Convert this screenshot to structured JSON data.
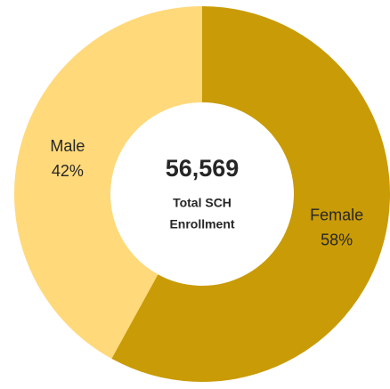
{
  "chart_data": {
    "type": "donut",
    "categories": [
      "Female",
      "Male"
    ],
    "values": [
      58,
      42
    ],
    "value_labels": [
      "58%",
      "42%"
    ],
    "colors": [
      "#c99b06",
      "#ffd97a"
    ],
    "center_text": "56,569",
    "center_subtitle": [
      "Total SCH",
      "Enrollment"
    ]
  }
}
